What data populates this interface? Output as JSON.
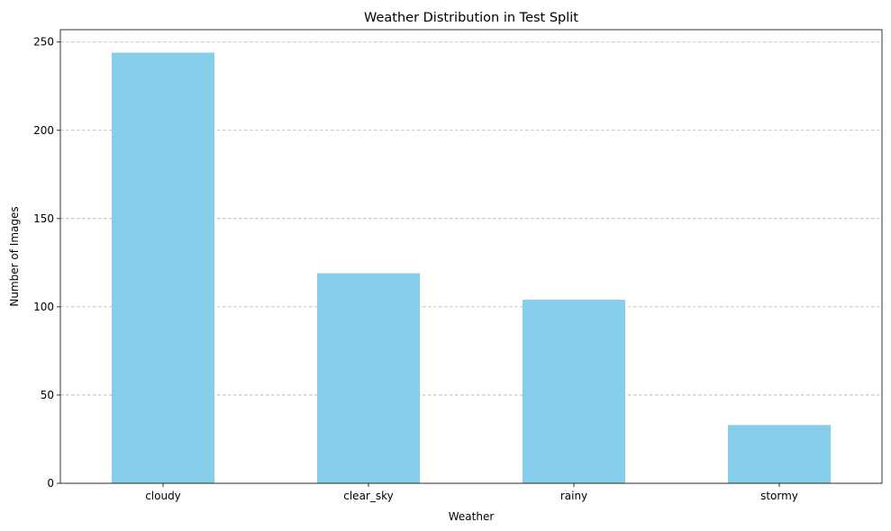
{
  "chart_data": {
    "type": "bar",
    "title": "Weather Distribution in Test Split",
    "xlabel": "Weather",
    "ylabel": "Number of Images",
    "categories": [
      "cloudy",
      "clear_sky",
      "rainy",
      "stormy"
    ],
    "values": [
      244,
      119,
      104,
      33
    ],
    "ylim": [
      0,
      257
    ],
    "yticks": [
      0,
      50,
      100,
      150,
      200,
      250
    ],
    "ytick_labels": [
      "0",
      "50",
      "100",
      "150",
      "200",
      "250"
    ],
    "grid": {
      "axis": "y",
      "style": "dashed"
    },
    "bar_color": "#87ceeb",
    "legend": "none"
  }
}
